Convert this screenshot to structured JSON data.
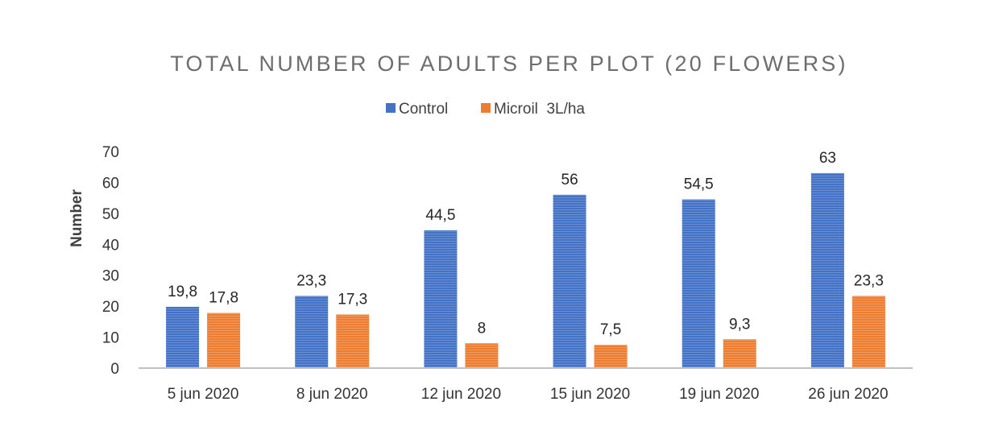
{
  "chart_data": {
    "type": "bar",
    "title": "TOTAL NUMBER OF ADULTS PER PLOT (20 FLOWERS)",
    "xlabel": "",
    "ylabel": "Number",
    "categories": [
      "5 jun 2020",
      "8 jun 2020",
      "12 jun 2020",
      "15 jun 2020",
      "19 jun 2020",
      "26 jun 2020"
    ],
    "series": [
      {
        "name": "Control",
        "color": "#4472c4",
        "values": [
          19.8,
          23.3,
          44.5,
          56,
          54.5,
          63
        ],
        "labels": [
          "19,8",
          "23,3",
          "44,5",
          "56",
          "54,5",
          "63"
        ]
      },
      {
        "name": "Microil  3L/ha",
        "color": "#ed7d31",
        "values": [
          17.8,
          17.3,
          8,
          7.5,
          9.3,
          23.3
        ],
        "labels": [
          "17,8",
          "17,3",
          "8",
          "7,5",
          "9,3",
          "23,3"
        ]
      }
    ],
    "ylim": [
      0,
      70
    ],
    "yticks": [
      0,
      10,
      20,
      30,
      40,
      50,
      60,
      70
    ],
    "grid": false,
    "legend_position": "top"
  }
}
